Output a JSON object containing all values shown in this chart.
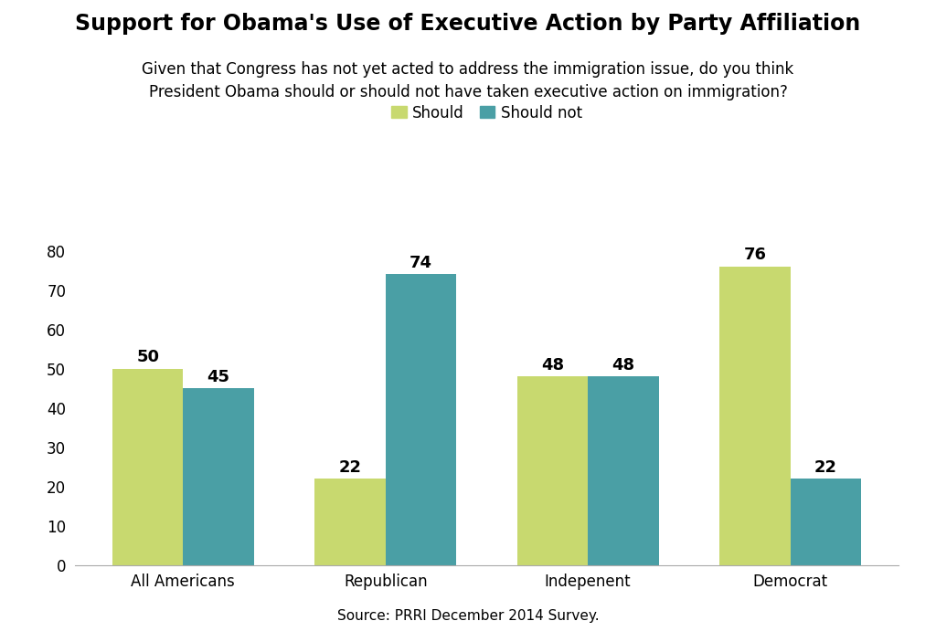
{
  "title": "Support for Obama's Use of Executive Action by Party Affiliation",
  "subtitle": "Given that Congress has not yet acted to address the immigration issue, do you think\nPresident Obama should or should not have taken executive action on immigration?",
  "source": "Source: PRRI December 2014 Survey.",
  "categories": [
    "All Americans",
    "Republican",
    "Indepenent",
    "Democrat"
  ],
  "should": [
    50,
    22,
    48,
    76
  ],
  "should_not": [
    45,
    74,
    48,
    22
  ],
  "color_should": "#c8d96f",
  "color_should_not": "#4a9fa5",
  "legend_labels": [
    "Should",
    "Should not"
  ],
  "ylim": [
    0,
    85
  ],
  "yticks": [
    0,
    10,
    20,
    30,
    40,
    50,
    60,
    70,
    80
  ],
  "bar_width": 0.35,
  "title_fontsize": 17,
  "subtitle_fontsize": 12,
  "source_fontsize": 11,
  "label_fontsize": 13,
  "tick_fontsize": 12,
  "legend_fontsize": 12,
  "background_color": "#ffffff"
}
